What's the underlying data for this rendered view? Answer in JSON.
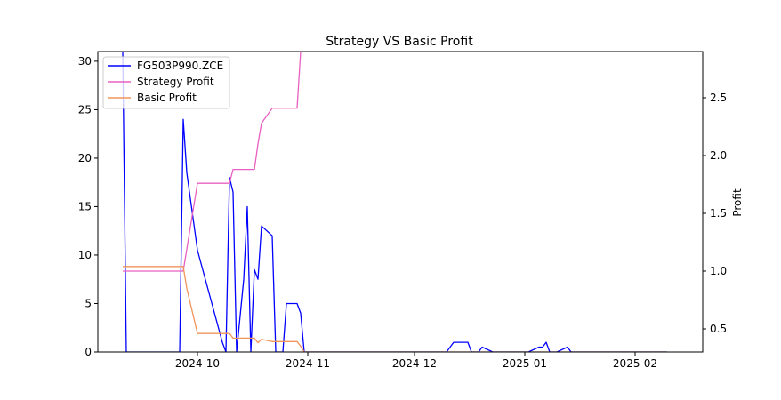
{
  "chart_data": {
    "type": "line",
    "title": "Strategy VS Basic Profit",
    "xlabel": "",
    "ylabel_left": "",
    "ylabel_right": "Profit",
    "x_ticks": [
      "2024-10",
      "2024-11",
      "2024-12",
      "2025-01",
      "2025-02"
    ],
    "x_tick_dates": [
      "2024-10-01",
      "2024-11-01",
      "2024-12-01",
      "2025-01-01",
      "2025-02-01"
    ],
    "xlim": [
      "2024-09-03",
      "2025-02-20"
    ],
    "ylim_left": [
      0,
      31
    ],
    "y_ticks_left": [
      0,
      5,
      10,
      15,
      20,
      25,
      30
    ],
    "ylim_right": [
      0.3,
      2.9
    ],
    "y_ticks_right": [
      0.5,
      1.0,
      1.5,
      2.0,
      2.5
    ],
    "legend_position": "top-left",
    "grid": false,
    "series": [
      {
        "name": "FG503P990.ZCE",
        "axis": "left",
        "color": "#0000ff",
        "points": [
          [
            "2024-09-10",
            31
          ],
          [
            "2024-09-11",
            0
          ],
          [
            "2024-09-26",
            0
          ],
          [
            "2024-09-27",
            24
          ],
          [
            "2024-09-28",
            18.5
          ],
          [
            "2024-10-01",
            10.5
          ],
          [
            "2024-10-08",
            1
          ],
          [
            "2024-10-09",
            0
          ],
          [
            "2024-10-10",
            18
          ],
          [
            "2024-10-11",
            16.5
          ],
          [
            "2024-10-12",
            0
          ],
          [
            "2024-10-14",
            7.5
          ],
          [
            "2024-10-15",
            15
          ],
          [
            "2024-10-16",
            0
          ],
          [
            "2024-10-17",
            8.5
          ],
          [
            "2024-10-18",
            7.5
          ],
          [
            "2024-10-19",
            13
          ],
          [
            "2024-10-22",
            12
          ],
          [
            "2024-10-23",
            0
          ],
          [
            "2024-10-25",
            0
          ],
          [
            "2024-10-26",
            5
          ],
          [
            "2024-10-29",
            5
          ],
          [
            "2024-10-30",
            4
          ],
          [
            "2024-10-31",
            0
          ],
          [
            "2024-12-10",
            0
          ],
          [
            "2024-12-12",
            1
          ],
          [
            "2024-12-16",
            1
          ],
          [
            "2024-12-17",
            0
          ],
          [
            "2024-12-19",
            0
          ],
          [
            "2024-12-20",
            0.5
          ],
          [
            "2024-12-23",
            0
          ],
          [
            "2025-01-02",
            0
          ],
          [
            "2025-01-05",
            0.5
          ],
          [
            "2025-01-06",
            0.5
          ],
          [
            "2025-01-07",
            1
          ],
          [
            "2025-01-08",
            0
          ],
          [
            "2025-01-10",
            0
          ],
          [
            "2025-01-13",
            0.5
          ],
          [
            "2025-01-14",
            0
          ],
          [
            "2025-02-10",
            0
          ]
        ]
      },
      {
        "name": "Strategy Profit",
        "axis": "right",
        "color": "#e860c0",
        "points": [
          [
            "2024-09-10",
            1.0
          ],
          [
            "2024-09-27",
            1.0
          ],
          [
            "2024-10-01",
            1.76
          ],
          [
            "2024-10-10",
            1.76
          ],
          [
            "2024-10-11",
            1.88
          ],
          [
            "2024-10-17",
            1.88
          ],
          [
            "2024-10-18",
            2.1
          ],
          [
            "2024-10-19",
            2.28
          ],
          [
            "2024-10-22",
            2.41
          ],
          [
            "2024-10-29",
            2.41
          ],
          [
            "2024-10-30",
            2.9
          ]
        ]
      },
      {
        "name": "Basic Profit",
        "axis": "right",
        "color": "#f0955a",
        "points": [
          [
            "2024-09-10",
            1.04
          ],
          [
            "2024-09-27",
            1.04
          ],
          [
            "2024-09-28",
            0.85
          ],
          [
            "2024-10-01",
            0.46
          ],
          [
            "2024-10-10",
            0.46
          ],
          [
            "2024-10-11",
            0.42
          ],
          [
            "2024-10-17",
            0.42
          ],
          [
            "2024-10-18",
            0.38
          ],
          [
            "2024-10-19",
            0.41
          ],
          [
            "2024-10-22",
            0.39
          ],
          [
            "2024-10-29",
            0.39
          ],
          [
            "2024-10-30",
            0.35
          ],
          [
            "2024-10-31",
            0.3
          ],
          [
            "2025-02-10",
            0.3
          ]
        ]
      }
    ]
  }
}
